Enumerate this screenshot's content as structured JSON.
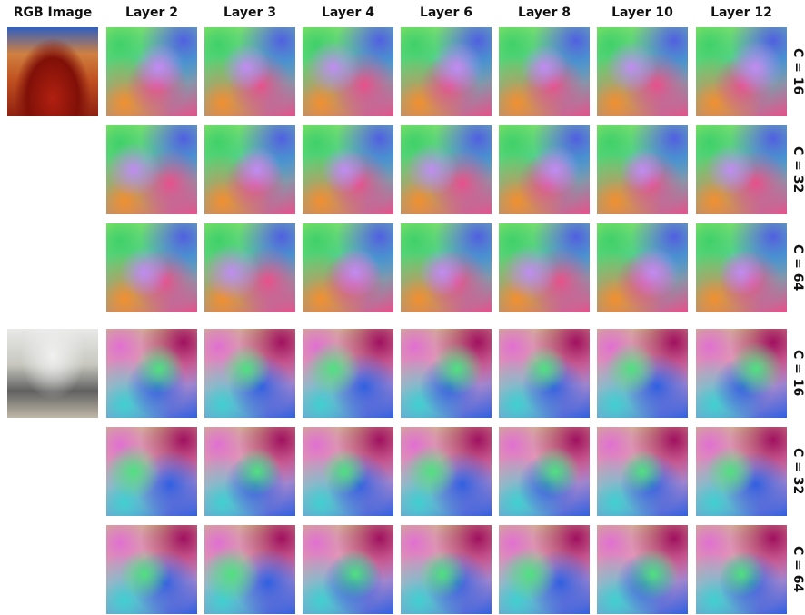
{
  "columns": [
    "RGB Image",
    "Layer 2",
    "Layer 3",
    "Layer 4",
    "Layer 6",
    "Layer 8",
    "Layer 10",
    "Layer 12"
  ],
  "groups": [
    {
      "rows": [
        "C = 16",
        "C = 32",
        "C = 64"
      ]
    },
    {
      "rows": [
        "C = 16",
        "C = 32",
        "C = 64"
      ]
    }
  ]
}
